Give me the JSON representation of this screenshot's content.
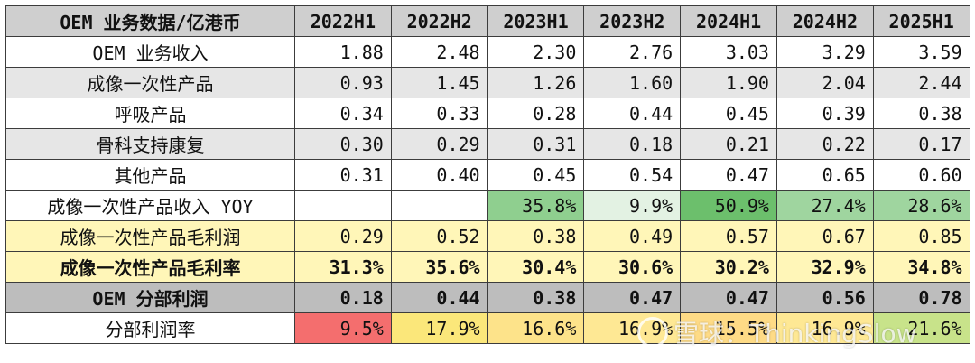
{
  "header": {
    "title": "OEM 业务数据/亿港币",
    "periods": [
      "2022H1",
      "2022H2",
      "2023H1",
      "2023H2",
      "2024H1",
      "2024H2",
      "2025H1"
    ]
  },
  "rows": [
    {
      "label": "OEM 业务收入",
      "values": [
        "1.88",
        "2.48",
        "2.30",
        "2.76",
        "3.03",
        "3.29",
        "3.59"
      ]
    },
    {
      "label": "成像一次性产品",
      "values": [
        "0.93",
        "1.45",
        "1.26",
        "1.60",
        "1.90",
        "2.04",
        "2.44"
      ]
    },
    {
      "label": "呼吸产品",
      "values": [
        "0.34",
        "0.33",
        "0.28",
        "0.44",
        "0.45",
        "0.39",
        "0.38"
      ]
    },
    {
      "label": "骨科支持康复",
      "values": [
        "0.30",
        "0.29",
        "0.31",
        "0.18",
        "0.21",
        "0.22",
        "0.17"
      ]
    },
    {
      "label": "其他产品",
      "values": [
        "0.31",
        "0.40",
        "0.45",
        "0.54",
        "0.47",
        "0.65",
        "0.60"
      ]
    },
    {
      "label": "成像一次性产品收入 YOY",
      "values": [
        "",
        "",
        "35.8%",
        "9.9%",
        "50.9%",
        "27.4%",
        "28.6%"
      ],
      "colors": [
        "#ffffff",
        "#ffffff",
        "#8fcf8f",
        "#e3f2e3",
        "#6cbf6c",
        "#9fd59f",
        "#9fd59f"
      ]
    },
    {
      "label": "成像一次性产品毛利润",
      "values": [
        "0.29",
        "0.52",
        "0.38",
        "0.49",
        "0.57",
        "0.67",
        "0.85"
      ]
    },
    {
      "label": "成像一次性产品毛利率",
      "values": [
        "31.3%",
        "35.6%",
        "30.4%",
        "30.6%",
        "30.2%",
        "32.9%",
        "34.8%"
      ]
    },
    {
      "label": "OEM 分部利润",
      "values": [
        "0.18",
        "0.44",
        "0.38",
        "0.47",
        "0.47",
        "0.56",
        "0.78"
      ]
    },
    {
      "label": "分部利润率",
      "values": [
        "9.5%",
        "17.9%",
        "16.6%",
        "16.9%",
        "15.5%",
        "16.9%",
        "21.6%"
      ],
      "colors": [
        "#f46e6e",
        "#fbe77a",
        "#fde38a",
        "#fee894",
        "#fedb86",
        "#fee894",
        "#c8e38a"
      ]
    }
  ],
  "watermark": {
    "text": "雪球：ThinkingSlow"
  }
}
